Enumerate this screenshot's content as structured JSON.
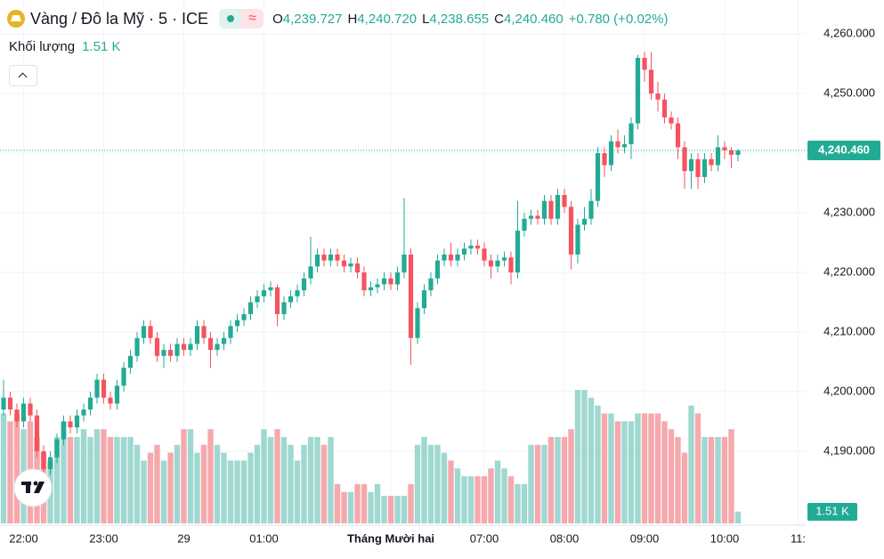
{
  "header": {
    "title": "Vàng / Đô la Mỹ · 5 · ICE",
    "ohlc": [
      {
        "label": "O",
        "value": "4,239.727"
      },
      {
        "label": "H",
        "value": "4,240.720"
      },
      {
        "label": "L",
        "value": "4,238.655"
      },
      {
        "label": "C",
        "value": "4,240.460"
      }
    ],
    "change": "+0.780 (+0.02%)",
    "volume_name": "Khối lượng",
    "volume": "1.51 K",
    "last_price": "4,240.460"
  },
  "chart_data": {
    "type": "candlestick",
    "up_color": "#22ab94",
    "down_color": "#f7525f",
    "volume_up_color": "#9fd8d0",
    "volume_down_color": "#f5a9ad",
    "grid": true,
    "ylim": [
      4177.6,
      4265.7
    ],
    "yticks": [
      {
        "value": 4190,
        "label": "4,190.000"
      },
      {
        "value": 4200,
        "label": "4,200.000"
      },
      {
        "value": 4210,
        "label": "4,210.000"
      },
      {
        "value": 4220,
        "label": "4,220.000"
      },
      {
        "value": 4230,
        "label": "4,230.000"
      },
      {
        "value": 4240,
        "label": "4,240.000"
      },
      {
        "value": 4250,
        "label": "4,250.000"
      },
      {
        "value": 4260,
        "label": "4,260.000"
      }
    ],
    "categories": [
      null,
      null,
      null,
      "22:00",
      null,
      null,
      null,
      null,
      null,
      null,
      null,
      null,
      null,
      null,
      null,
      "23:00",
      null,
      null,
      null,
      null,
      null,
      null,
      null,
      null,
      null,
      null,
      null,
      "29",
      null,
      null,
      null,
      null,
      null,
      null,
      null,
      null,
      null,
      null,
      null,
      "01:00",
      null,
      null,
      null,
      null,
      null,
      null,
      null,
      null,
      null,
      null,
      null,
      null,
      null,
      null,
      null,
      null,
      null,
      null,
      "Tháng Mười hai",
      null,
      null,
      null,
      null,
      null,
      null,
      null,
      null,
      null,
      null,
      null,
      null,
      null,
      "07:00",
      null,
      null,
      null,
      null,
      null,
      null,
      null,
      null,
      null,
      null,
      null,
      "08:00",
      null,
      null,
      null,
      null,
      null,
      null,
      null,
      null,
      null,
      null,
      null,
      "09:00",
      null,
      null,
      null,
      null,
      null,
      null,
      null,
      null,
      null,
      null,
      null,
      "10:00",
      null,
      null,
      null,
      null,
      null,
      null,
      null,
      null,
      null,
      null,
      "11:"
    ],
    "open": [
      4197,
      4199,
      4197,
      4195,
      4198,
      4196,
      4190,
      4187,
      4189,
      4192,
      4195,
      4194,
      4196,
      4197,
      4199,
      4202,
      4199,
      4198,
      4201,
      4204,
      4206,
      4209,
      4211,
      4209,
      4206,
      4207,
      4206,
      4208,
      4207,
      4208,
      4211,
      4209,
      4207,
      4208,
      4209,
      4211,
      4212,
      4213,
      4215,
      4216,
      4217,
      4217.5,
      4213,
      4215,
      4216,
      4217,
      4219,
      4221,
      4223,
      4222,
      4223,
      4222,
      4221,
      4221.5,
      4220,
      4217,
      4217.5,
      4218,
      4219,
      4218,
      4220,
      4223,
      4209,
      4214,
      4217,
      4219,
      4222,
      4223,
      4222,
      4223,
      4224,
      4224.5,
      4224,
      4222,
      4221,
      4222,
      4222.5,
      4220,
      4227,
      4229,
      4229.5,
      4229,
      4232,
      4229,
      4233,
      4231,
      4223,
      4228,
      4229,
      4232,
      4240,
      4238,
      4242,
      4241,
      4241.5,
      4245,
      4256,
      4254,
      4250,
      4249,
      4246,
      4245,
      4241,
      4237,
      4239,
      4236,
      4239,
      4238,
      4241,
      4240.5,
      4239.727,
      null,
      null,
      null,
      null,
      null,
      null,
      null,
      null,
      null
    ],
    "high": [
      4202,
      4200,
      4198,
      4199,
      4199,
      4197,
      4191,
      4190,
      4193,
      4196,
      4196,
      4197,
      4198,
      4200,
      4203,
      4203,
      4200,
      4202,
      4205,
      4207,
      4210,
      4212,
      4212,
      4210,
      4208,
      4208,
      4209,
      4209,
      4209,
      4212,
      4212,
      4210,
      4209,
      4210,
      4212,
      4213,
      4214,
      4216,
      4217,
      4218,
      4218.5,
      4218,
      4216,
      4217,
      4218,
      4220,
      4226,
      4224,
      4224,
      4224,
      4224,
      4223,
      4222.5,
      4222.5,
      4221,
      4218.5,
      4219,
      4220,
      4220,
      4221,
      4232.5,
      4224,
      4215,
      4218,
      4220,
      4223,
      4224,
      4225,
      4224,
      4225,
      4225.5,
      4225.5,
      4225,
      4223,
      4223,
      4223.5,
      4223.5,
      4232,
      4230,
      4230.5,
      4230.5,
      4233,
      4233,
      4234,
      4234,
      4232,
      4229,
      4231,
      4234,
      4241,
      4241,
      4243,
      4244,
      4243,
      4246,
      4256.5,
      4257,
      4257,
      4252,
      4250,
      4247,
      4246,
      4242,
      4240,
      4240,
      4240,
      4240,
      4243,
      4242,
      4241,
      4240.72,
      null,
      null,
      null,
      null,
      null,
      null,
      null,
      null,
      null
    ],
    "low": [
      4196,
      4196,
      4194,
      4194,
      4195,
      4189,
      4186,
      4186,
      4188,
      4191,
      4193,
      4193,
      4195,
      4196,
      4198,
      4198,
      4197,
      4197,
      4200,
      4203,
      4205,
      4208,
      4208,
      4205,
      4204,
      4205,
      4205,
      4206,
      4206,
      4207,
      4208,
      4204,
      4206,
      4207,
      4208,
      4210,
      4211,
      4212,
      4214,
      4215,
      4216,
      4211,
      4212,
      4214,
      4215,
      4216,
      4218,
      4220,
      4221,
      4221,
      4221,
      4220,
      4220,
      4219,
      4216,
      4216,
      4216.5,
      4217,
      4217,
      4217,
      4219,
      4204.5,
      4208,
      4213,
      4216,
      4218,
      4221,
      4221,
      4221,
      4222,
      4223,
      4223,
      4221,
      4219,
      4220,
      4221,
      4218,
      4219,
      4226,
      4228,
      4228,
      4228,
      4228,
      4228,
      4230,
      4220.5,
      4221.5,
      4227,
      4228,
      4231,
      4236,
      4237,
      4240,
      4240,
      4239,
      4244,
      4252,
      4249,
      4247,
      4245,
      4244,
      4239,
      4234,
      4234,
      4234,
      4235,
      4237,
      4237,
      4239,
      4237.5,
      4238.655,
      null,
      null,
      null,
      null,
      null,
      null,
      null,
      null,
      null
    ],
    "close": [
      4199,
      4197,
      4195,
      4198,
      4196,
      4190,
      4187,
      4189,
      4192,
      4195,
      4194,
      4196,
      4197,
      4199,
      4202,
      4199,
      4198,
      4201,
      4204,
      4206,
      4209,
      4211,
      4209,
      4206,
      4207,
      4206,
      4208,
      4207,
      4208,
      4211,
      4209,
      4207,
      4208,
      4209,
      4211,
      4212,
      4213,
      4215,
      4216,
      4217,
      4217.5,
      4213,
      4215,
      4216,
      4217,
      4219,
      4221,
      4223,
      4222,
      4223,
      4222,
      4221,
      4221.5,
      4220,
      4217,
      4217.5,
      4218,
      4219,
      4218,
      4220,
      4223,
      4209,
      4214,
      4217,
      4219,
      4222,
      4223,
      4222,
      4223,
      4224,
      4224.5,
      4224,
      4222,
      4221,
      4222,
      4222.5,
      4220,
      4227,
      4229,
      4229.5,
      4229,
      4232,
      4229,
      4233,
      4231,
      4223,
      4228,
      4229,
      4232,
      4240,
      4238,
      4242,
      4241,
      4241.5,
      4245,
      4256,
      4254,
      4250,
      4249,
      4246,
      4245,
      4241,
      4237,
      4239,
      4236,
      4239,
      4238,
      4241,
      4240.5,
      4239.727,
      4240.46,
      null,
      null,
      null,
      null,
      null,
      null,
      null,
      null,
      null
    ],
    "volume": [
      14,
      13,
      14,
      12,
      13,
      11,
      9,
      8,
      11,
      13,
      11,
      11,
      12,
      11,
      12,
      12,
      11,
      11,
      11,
      11,
      10,
      8,
      9,
      10,
      8,
      9,
      10,
      12,
      12,
      9,
      10,
      12,
      10,
      9,
      8,
      8,
      8,
      9,
      10,
      12,
      11,
      12,
      11,
      10,
      8,
      10,
      11,
      11,
      10,
      11,
      5,
      4,
      4,
      5,
      5,
      4,
      5,
      3.5,
      3.5,
      3.5,
      3.5,
      5,
      10,
      11,
      10,
      10,
      9,
      8,
      7,
      6,
      6,
      6,
      6,
      7,
      8,
      7,
      6,
      5,
      5,
      10,
      10,
      10,
      11,
      11,
      11,
      12,
      17,
      17,
      16,
      15,
      14,
      14,
      13,
      13,
      13,
      14,
      14,
      14,
      14,
      13,
      12,
      11,
      9,
      15,
      14,
      11,
      11,
      11,
      11,
      12,
      1.51,
      null,
      null,
      null,
      null,
      null,
      null,
      null,
      null,
      null
    ]
  }
}
